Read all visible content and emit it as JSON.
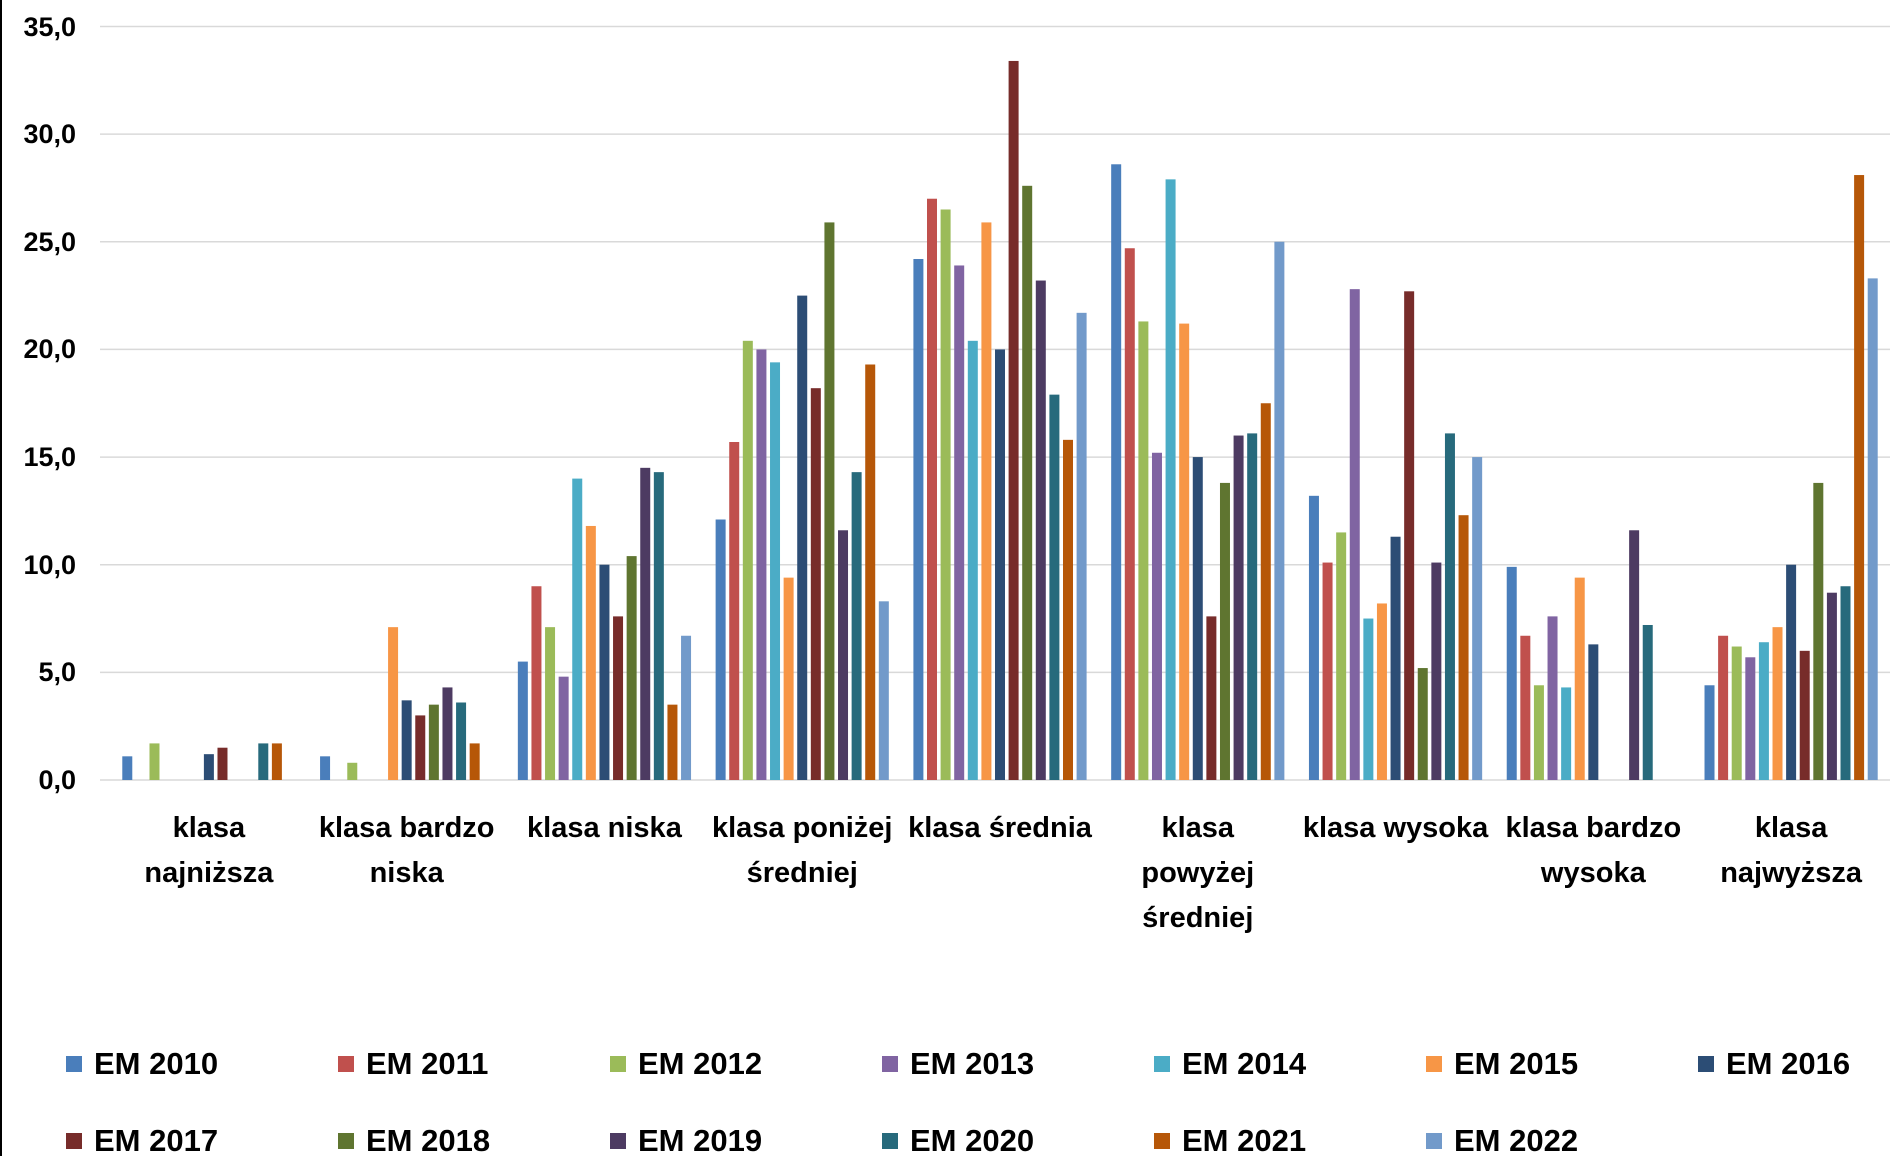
{
  "chart_data": {
    "type": "bar",
    "categories": [
      "klasa najniższa",
      "klasa bardzo niska",
      "klasa niska",
      "klasa poniżej średniej",
      "klasa średnia",
      "klasa powyżej średniej",
      "klasa wysoka",
      "klasa bardzo wysoka",
      "klasa najwyższa"
    ],
    "series": [
      {
        "name": "EM 2010",
        "color": "#4a7ebb",
        "values": [
          1.1,
          1.1,
          5.5,
          12.1,
          24.2,
          28.6,
          13.2,
          9.9,
          4.4
        ]
      },
      {
        "name": "EM 2011",
        "color": "#c0504d",
        "values": [
          null,
          null,
          9.0,
          15.7,
          27.0,
          24.7,
          10.1,
          6.7,
          6.7
        ]
      },
      {
        "name": "EM 2012",
        "color": "#9bbb59",
        "values": [
          1.7,
          0.8,
          7.1,
          20.4,
          26.5,
          21.3,
          11.5,
          4.4,
          6.2
        ]
      },
      {
        "name": "EM 2013",
        "color": "#8064a2",
        "values": [
          null,
          null,
          4.8,
          20.0,
          23.9,
          15.2,
          22.8,
          7.6,
          5.7
        ]
      },
      {
        "name": "EM 2014",
        "color": "#4bacc6",
        "values": [
          null,
          null,
          14.0,
          19.4,
          20.4,
          27.9,
          7.5,
          4.3,
          6.4
        ]
      },
      {
        "name": "EM 2015",
        "color": "#f79646",
        "values": [
          null,
          7.1,
          11.8,
          9.4,
          25.9,
          21.2,
          8.2,
          9.4,
          7.1
        ]
      },
      {
        "name": "EM 2016",
        "color": "#2c4d75",
        "values": [
          1.2,
          3.7,
          10.0,
          22.5,
          20.0,
          15.0,
          11.3,
          6.3,
          10.0
        ]
      },
      {
        "name": "EM 2017",
        "color": "#772c2a",
        "values": [
          1.5,
          3.0,
          7.6,
          18.2,
          33.4,
          7.6,
          22.7,
          null,
          6.0
        ]
      },
      {
        "name": "EM 2018",
        "color": "#5f7530",
        "values": [
          null,
          3.5,
          10.4,
          25.9,
          27.6,
          13.8,
          5.2,
          null,
          13.8
        ]
      },
      {
        "name": "EM 2019",
        "color": "#4d3b62",
        "values": [
          null,
          4.3,
          14.5,
          11.6,
          23.2,
          16.0,
          10.1,
          11.6,
          8.7
        ]
      },
      {
        "name": "EM 2020",
        "color": "#276a7c",
        "values": [
          1.7,
          3.6,
          14.3,
          14.3,
          17.9,
          16.1,
          16.1,
          7.2,
          9.0
        ]
      },
      {
        "name": "EM 2021",
        "color": "#b65708",
        "values": [
          1.7,
          1.7,
          3.5,
          19.3,
          15.8,
          17.5,
          12.3,
          null,
          28.1
        ]
      },
      {
        "name": "EM 2022",
        "color": "#729aca",
        "values": [
          null,
          null,
          6.7,
          8.3,
          21.7,
          25.0,
          15.0,
          null,
          23.3
        ]
      }
    ],
    "ylim": [
      0,
      35
    ],
    "yticks": [
      {
        "value": 0,
        "label": "0,0"
      },
      {
        "value": 5,
        "label": "5,0"
      },
      {
        "value": 10,
        "label": "10,0"
      },
      {
        "value": 15,
        "label": "15,0"
      },
      {
        "value": 20,
        "label": "20,0"
      },
      {
        "value": 25,
        "label": "25,0"
      },
      {
        "value": 30,
        "label": "30,0"
      },
      {
        "value": 35,
        "label": "35,0"
      }
    ],
    "grid": true
  }
}
